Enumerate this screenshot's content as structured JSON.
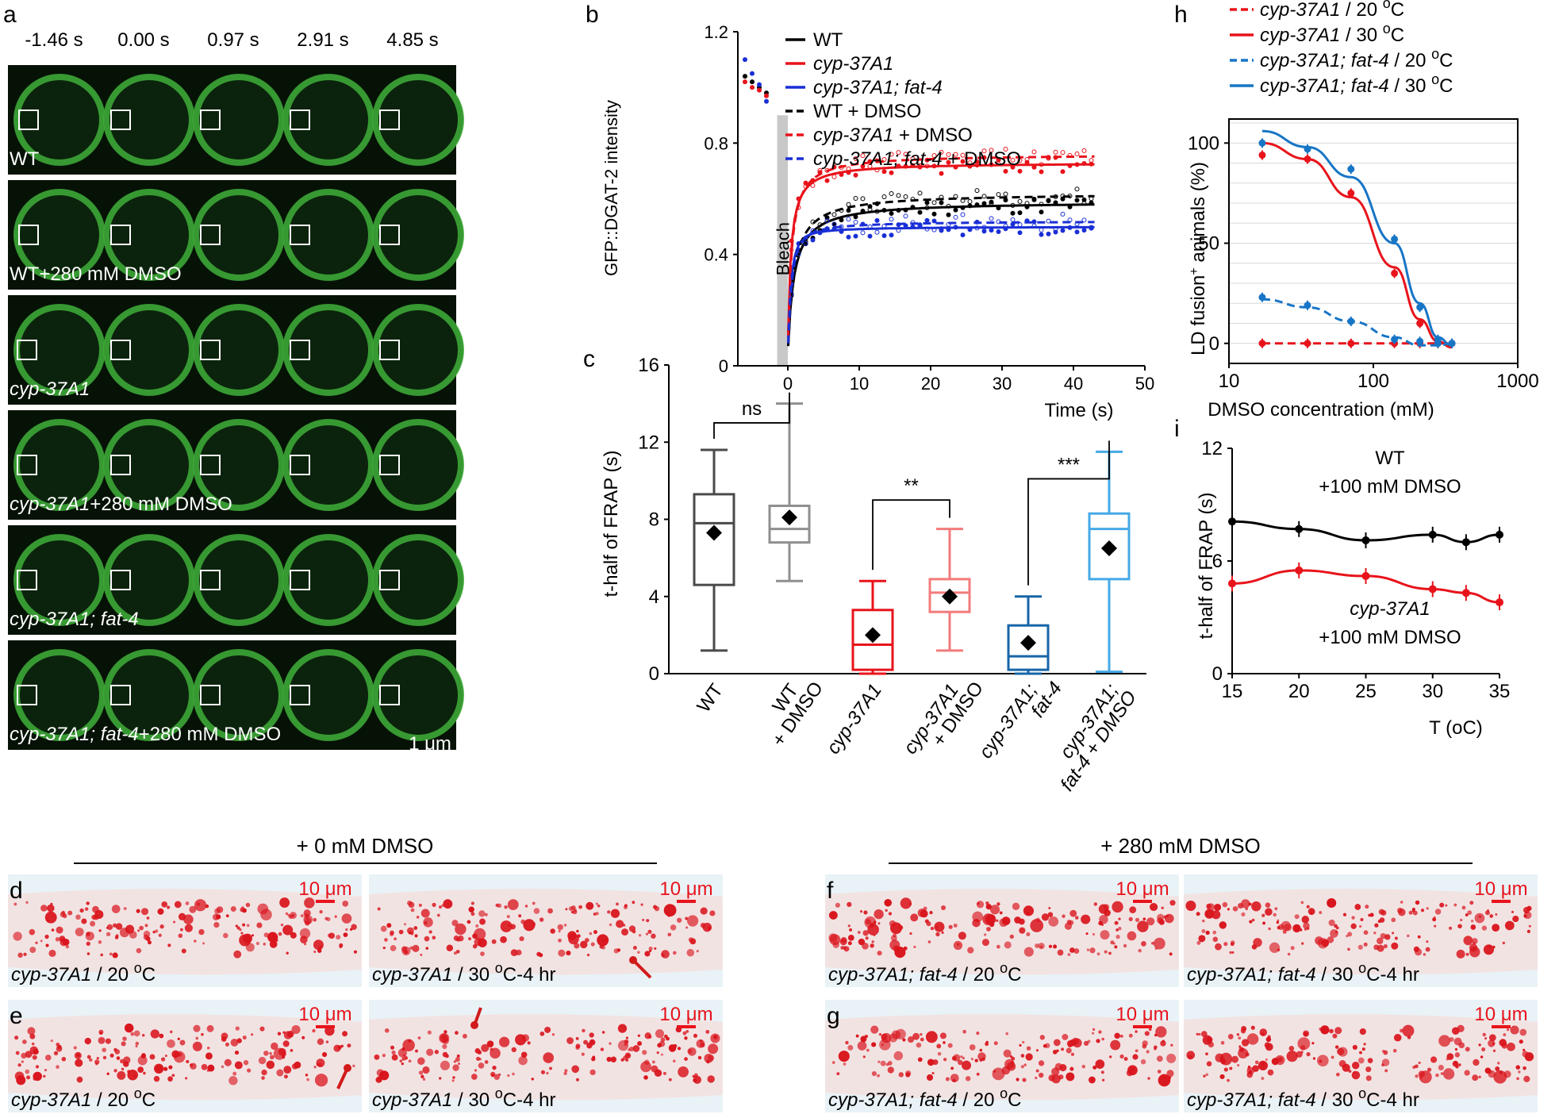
{
  "panels": {
    "a": "a",
    "b": "b",
    "c": "c",
    "d": "d",
    "e": "e",
    "f": "f",
    "g": "g",
    "h": "h",
    "i": "i"
  },
  "panel_a": {
    "timepoints": [
      "-1.46 s",
      "0.00 s",
      "0.97 s",
      "2.91 s",
      "4.85 s"
    ],
    "rows": [
      {
        "italic": "",
        "plain": "WT"
      },
      {
        "italic": "",
        "plain": "WT+280 mM DMSO"
      },
      {
        "italic": "cyp-37A1",
        "plain": ""
      },
      {
        "italic": "cyp-37A1",
        "plain": "+280 mM DMSO"
      },
      {
        "italic": "cyp-37A1; fat-4",
        "plain": ""
      },
      {
        "italic": "cyp-37A1; fat-4",
        "plain": "+280 mM DMSO"
      }
    ],
    "scale_bar": "1 μm",
    "colors": {
      "bg": "#061206",
      "ring": "#3fae3a",
      "box": "#ffffff"
    }
  },
  "chart_data": [
    {
      "id": "b",
      "type": "line",
      "ylabel": "GFP::DGAT-2 intensity",
      "xlabel": "Time (s)",
      "xlim": [
        -7,
        50
      ],
      "ylim": [
        0,
        1.2
      ],
      "xticks": [
        0,
        10,
        20,
        30,
        40,
        50
      ],
      "yticks": [
        0,
        0.4,
        0.8,
        1.2
      ],
      "ytick_labels": [
        "0",
        "0.4",
        "0.8",
        "1.2"
      ],
      "annotation": "Bleach",
      "legend": [
        {
          "label": "WT",
          "italic": false,
          "suffix": "",
          "color": "#000000",
          "dash": false
        },
        {
          "label": "cyp-37A1",
          "italic": true,
          "suffix": "",
          "color": "#e8131b",
          "dash": false
        },
        {
          "label": "cyp-37A1; fat-4",
          "italic": true,
          "suffix": "",
          "color": "#1a2fd6",
          "dash": false
        },
        {
          "label": "WT + DMSO",
          "italic": false,
          "suffix": "",
          "color": "#000000",
          "dash": true
        },
        {
          "label": "cyp-37A1",
          "italic": true,
          "suffix": " + DMSO",
          "color": "#e8131b",
          "dash": true
        },
        {
          "label": "cyp-37A1; fat-4",
          "italic": true,
          "suffix": " + DMSO",
          "color": "#1a2fd6",
          "dash": true
        }
      ],
      "prebleach": [
        {
          "x": -6,
          "y": 1.04,
          "color": "#000000"
        },
        {
          "x": -5,
          "y": 1.02,
          "color": "#000000"
        },
        {
          "x": -4,
          "y": 1.0,
          "color": "#000000"
        },
        {
          "x": -3,
          "y": 0.98,
          "color": "#000000"
        },
        {
          "x": -6,
          "y": 1.02,
          "color": "#e8131b"
        },
        {
          "x": -5,
          "y": 1.0,
          "color": "#e8131b"
        },
        {
          "x": -4,
          "y": 0.99,
          "color": "#e8131b"
        },
        {
          "x": -3,
          "y": 0.97,
          "color": "#e8131b"
        },
        {
          "x": -6,
          "y": 1.1,
          "color": "#1a2fd6"
        },
        {
          "x": -5,
          "y": 1.05,
          "color": "#1a2fd6"
        },
        {
          "x": -4,
          "y": 1.01,
          "color": "#1a2fd6"
        },
        {
          "x": -3,
          "y": 0.95,
          "color": "#1a2fd6"
        }
      ],
      "series": [
        {
          "name": "WT",
          "color": "#000000",
          "dash": false,
          "A": 0.55,
          "B": 0.85
        },
        {
          "name": "cyp-37A1",
          "color": "#e8131b",
          "dash": false,
          "A": 0.69,
          "B": 0.4
        },
        {
          "name": "cyp-37A1; fat-4",
          "color": "#1a2fd6",
          "dash": false,
          "A": 0.31,
          "B": 0.3
        },
        {
          "name": "WT + DMSO",
          "color": "#000000",
          "dash": true,
          "A": 0.58,
          "B": 0.82
        },
        {
          "name": "cyp-37A1 + DMSO",
          "color": "#e8131b",
          "dash": true,
          "A": 0.72,
          "B": 0.5
        },
        {
          "name": "cyp-37A1; fat-4 + DMSO",
          "color": "#1a2fd6",
          "dash": true,
          "A": 0.33,
          "B": 0.5
        }
      ]
    },
    {
      "id": "c",
      "type": "box",
      "ylabel": "t-half of FRAP (s)",
      "ylim": [
        0,
        16
      ],
      "yticks": [
        0,
        4,
        8,
        12,
        16
      ],
      "boxes": [
        {
          "lines": [
            "WT"
          ],
          "italic": [
            false
          ],
          "min": 1.2,
          "q1": 4.6,
          "median": 7.8,
          "q3": 9.3,
          "max": 11.6,
          "mean": 7.3,
          "color": "#4a4a4a"
        },
        {
          "lines": [
            "WT",
            "+ DMSO"
          ],
          "italic": [
            false,
            false
          ],
          "min": 4.8,
          "q1": 6.8,
          "median": 7.5,
          "q3": 8.7,
          "max": 14.0,
          "mean": 8.1,
          "color": "#8f8f8f"
        },
        {
          "lines": [
            "cyp-37A1"
          ],
          "italic": [
            true
          ],
          "min": 0.0,
          "q1": 0.2,
          "median": 1.5,
          "q3": 3.3,
          "max": 4.8,
          "mean": 2.0,
          "color": "#e8131b"
        },
        {
          "lines": [
            "cyp-37A1",
            "+ DMSO"
          ],
          "italic": [
            true,
            false
          ],
          "min": 1.2,
          "q1": 3.2,
          "median": 4.2,
          "q3": 4.9,
          "max": 7.5,
          "mean": 4.0,
          "color": "#f37b7b"
        },
        {
          "lines": [
            "cyp-37A1;",
            "fat-4"
          ],
          "italic": [
            true,
            true
          ],
          "min": 0.0,
          "q1": 0.2,
          "median": 0.9,
          "q3": 2.5,
          "max": 4.0,
          "mean": 1.6,
          "color": "#1765a8"
        },
        {
          "lines": [
            "cyp-37A1;",
            "fat-4 + DMSO"
          ],
          "italic": [
            true,
            true
          ],
          "min": 0.1,
          "q1": 4.9,
          "median": 7.5,
          "q3": 8.3,
          "max": 11.5,
          "mean": 6.5,
          "color": "#45a9e6"
        }
      ],
      "significance": [
        {
          "from": 0,
          "to": 1,
          "label": "ns",
          "y": 13.0
        },
        {
          "from": 2,
          "to": 3,
          "label": "**",
          "y": 9.0
        },
        {
          "from": 4,
          "to": 5,
          "label": "***",
          "y": 10.1
        }
      ]
    },
    {
      "id": "h",
      "type": "line",
      "xscale": "log",
      "xlabel": "DMSO concentration (mM)",
      "ylabel": "LD fusion+ animals (%)",
      "xlim": [
        10,
        1000
      ],
      "ylim": [
        -10,
        112
      ],
      "xticks": [
        10,
        100,
        1000
      ],
      "yticks": [
        0,
        50,
        100
      ],
      "legend": [
        {
          "label": "cyp-37A1",
          "temp": "20",
          "color": "#e8131b",
          "dash": true
        },
        {
          "label": "cyp-37A1",
          "temp": "30",
          "color": "#e8131b",
          "dash": false
        },
        {
          "label": "cyp-37A1; fat-4",
          "temp": "20",
          "color": "#1775c6",
          "dash": true
        },
        {
          "label": "cyp-37A1; fat-4",
          "temp": "30",
          "color": "#1775c6",
          "dash": false
        }
      ],
      "series": [
        {
          "name": "cyp-37A1 / 20 oC",
          "color": "#e8131b",
          "dash": true,
          "x": [
            17,
            35,
            70,
            140,
            210,
            280,
            350
          ],
          "y": [
            0,
            0,
            0,
            0,
            0,
            0,
            0
          ],
          "curve": [
            0,
            0,
            0,
            0,
            0,
            0,
            0
          ]
        },
        {
          "name": "cyp-37A1 / 30 oC",
          "color": "#e8131b",
          "dash": false,
          "x": [
            17,
            35,
            70,
            140,
            210,
            280,
            350
          ],
          "y": [
            94,
            92,
            75,
            35,
            10,
            1,
            0
          ],
          "curve": [
            100,
            92,
            73,
            38,
            12,
            1,
            -2
          ]
        },
        {
          "name": "cyp-37A1; fat-4 / 20 oC",
          "color": "#1775c6",
          "dash": true,
          "x": [
            17,
            35,
            70,
            140,
            210,
            280,
            350
          ],
          "y": [
            23,
            19,
            11,
            2,
            1,
            0,
            0
          ],
          "curve": [
            22,
            18,
            11,
            3,
            -1,
            -1,
            0
          ]
        },
        {
          "name": "cyp-37A1; fat-4 / 30 oC",
          "color": "#1775c6",
          "dash": false,
          "x": [
            17,
            35,
            70,
            140,
            210,
            280,
            350
          ],
          "y": [
            100,
            97,
            87,
            52,
            18,
            2,
            0
          ],
          "curve": [
            106,
            98,
            83,
            50,
            20,
            3,
            -1
          ]
        }
      ]
    },
    {
      "id": "i",
      "type": "line",
      "xlabel": "T (oC)",
      "ylabel": "t-half of FRAP (s)",
      "xlim": [
        15,
        35
      ],
      "ylim": [
        0,
        12
      ],
      "xticks": [
        15,
        20,
        25,
        30,
        35
      ],
      "yticks": [
        0,
        6,
        12
      ],
      "series": [
        {
          "name": "WT",
          "suffix": "+100 mM DMSO",
          "italic": false,
          "color": "#000000",
          "x": [
            15,
            20,
            25,
            30,
            32.5,
            35
          ],
          "y": [
            8.1,
            7.7,
            7.1,
            7.4,
            7.0,
            7.4
          ]
        },
        {
          "name": "cyp-37A1",
          "suffix": "+100 mM DMSO",
          "italic": true,
          "color": "#e8131b",
          "x": [
            15,
            20,
            25,
            30,
            32.5,
            35
          ],
          "y": [
            4.8,
            5.5,
            5.2,
            4.5,
            4.3,
            3.8
          ]
        }
      ]
    }
  ],
  "bottom": {
    "group_left": "+ 0 mM DMSO",
    "group_right": "+ 280 mM DMSO",
    "scale_label": "10 μm",
    "images": [
      {
        "panel": "d",
        "italic": "cyp-37A1",
        "rest": " / 20 ",
        "unit": "oC",
        "extra": ""
      },
      {
        "panel": "",
        "italic": "cyp-37A1",
        "rest": " / 30 ",
        "unit": "oC",
        "extra": "-4 hr"
      },
      {
        "panel": "e",
        "italic": "cyp-37A1",
        "rest": " / 20 ",
        "unit": "oC",
        "extra": ""
      },
      {
        "panel": "",
        "italic": "cyp-37A1",
        "rest": " / 30 ",
        "unit": "oC",
        "extra": "-4 hr"
      },
      {
        "panel": "f",
        "italic": "cyp-37A1; fat-4",
        "rest": " / 20 ",
        "unit": "oC",
        "extra": ""
      },
      {
        "panel": "",
        "italic": "cyp-37A1; fat-4",
        "rest": " / 30 ",
        "unit": "oC",
        "extra": "-4 hr"
      },
      {
        "panel": "g",
        "italic": "cyp-37A1; fat-4",
        "rest": " / 20 ",
        "unit": "oC",
        "extra": ""
      },
      {
        "panel": "",
        "italic": "cyp-37A1; fat-4",
        "rest": " / 30 ",
        "unit": "oC",
        "extra": "-4 hr"
      }
    ],
    "colors": {
      "tissue": "#e9f2f6",
      "droplet": "#d9141c",
      "scale": "#e8131b"
    }
  }
}
